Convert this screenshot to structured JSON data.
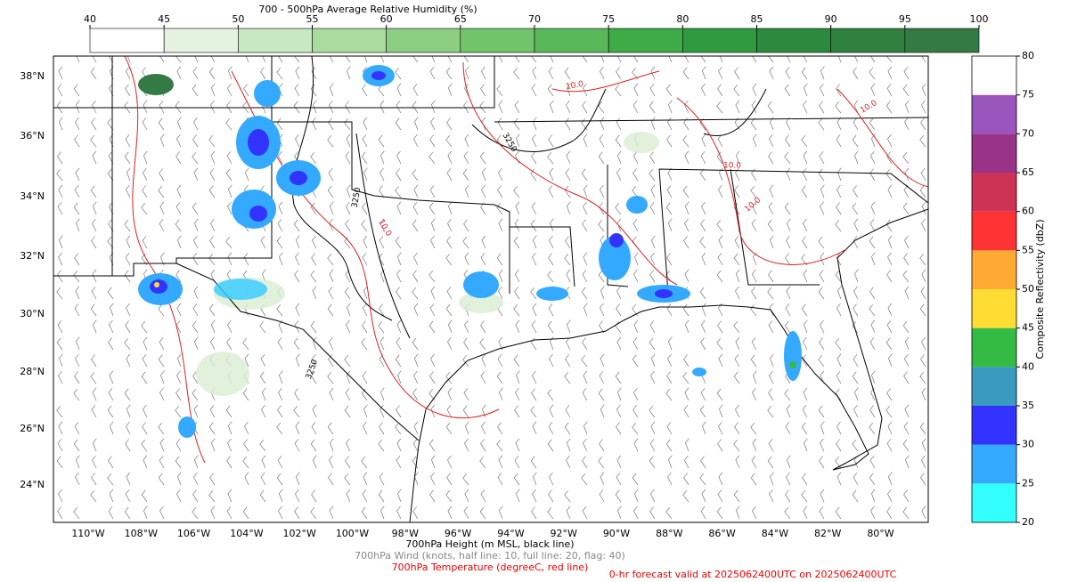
{
  "top_colorbar": {
    "title": "700 - 500hPa Average Relative Humidity (%)",
    "ticks": [
      40,
      45,
      50,
      55,
      60,
      65,
      70,
      75,
      80,
      85,
      90,
      95,
      100
    ],
    "colors": [
      "#ffffff",
      "#e4f3df",
      "#c8e8c1",
      "#aadc9f",
      "#8ccf83",
      "#72c46b",
      "#58b85a",
      "#3dab46",
      "#2f9b40",
      "#2b8a3d",
      "#30803f",
      "#347a45"
    ]
  },
  "right_colorbar": {
    "label": "Composite Reflectivity (dbZ)",
    "ticks": [
      20,
      25,
      30,
      35,
      40,
      45,
      50,
      55,
      60,
      65,
      70,
      75,
      80
    ],
    "colors": [
      "#33ffff",
      "#33aaff",
      "#3333ff",
      "#3a9abf",
      "#33bb44",
      "#ffdd33",
      "#ffaa33",
      "#ff3333",
      "#cc3355",
      "#993388",
      "#9955bb",
      "#ffffff"
    ]
  },
  "map": {
    "lat_labels": [
      "38°N",
      "36°N",
      "34°N",
      "32°N",
      "30°N",
      "28°N",
      "26°N",
      "24°N"
    ],
    "lon_labels": [
      "110°W",
      "108°W",
      "106°W",
      "104°W",
      "102°W",
      "100°W",
      "98°W",
      "96°W",
      "94°W",
      "92°W",
      "90°W",
      "88°W",
      "86°W",
      "84°W",
      "82°W",
      "80°W"
    ],
    "contour_labels": [
      "3250",
      "3250",
      "3250",
      "10.0",
      "10.0",
      "10.0",
      "10.0",
      "10.0"
    ]
  },
  "captions": {
    "height": "700hPa Height (m MSL, black line)",
    "wind": "700hPa Wind (knots, half line: 10, full line: 20, flag: 40)",
    "temperature": "700hPa Temperature (degreeC, red line)",
    "valid": "0-hr forecast valid at 2025062400UTC on 2025062400UTC"
  }
}
